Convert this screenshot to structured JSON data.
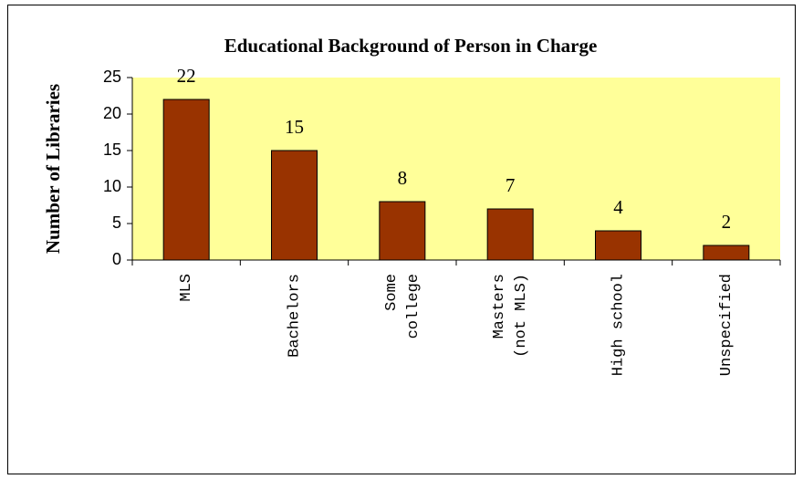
{
  "chart_data": {
    "type": "bar",
    "title": "Educational Background of Person in Charge",
    "y_label": "Number of Libraries",
    "categories": [
      "MLS",
      "Bachelors",
      "Some\ncollege",
      "Masters\n(not MLS)",
      "High school",
      "Unspecified"
    ],
    "values": [
      22,
      15,
      8,
      7,
      4,
      2
    ],
    "color": "#993300",
    "plot_background": "#ffff99",
    "ylim": [
      0,
      25
    ],
    "yticks": [
      0,
      5,
      10,
      15,
      20,
      25
    ]
  }
}
